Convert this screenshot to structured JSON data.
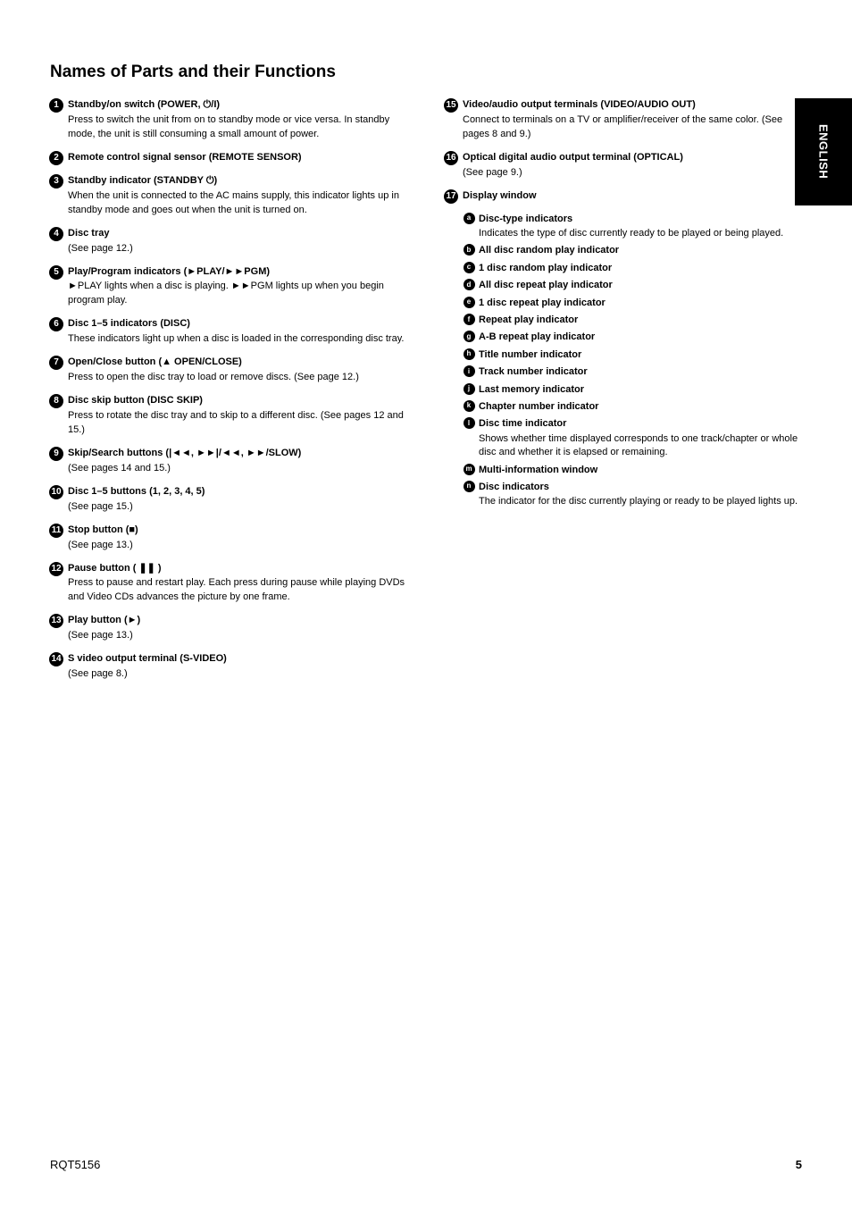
{
  "colors": {
    "text": "#000000",
    "bg": "#ffffff",
    "tab_bg": "#000000",
    "tab_text": "#ffffff"
  },
  "typography": {
    "heading_pt": 19,
    "body_pt": 11,
    "circled_num_pt": 10,
    "circled_letter_pt": 8
  },
  "page": {
    "heading": "Names of Parts and their Functions",
    "tab": "ENGLISH",
    "number_left": "RQT5156",
    "number_right": "5"
  },
  "left": [
    {
      "num": "1",
      "bold": "Standby/on switch (POWER, ⏻/I)",
      "text": "Press to switch the unit from on to standby mode or vice versa. In standby mode, the unit is still consuming a small amount of power."
    },
    {
      "num": "2",
      "bold": "Remote control signal sensor (REMOTE SENSOR)"
    },
    {
      "num": "3",
      "bold": "Standby indicator (STANDBY ⏻)",
      "text": "When the unit is connected to the AC mains supply, this indicator lights up in standby mode and goes out when the unit is turned on."
    },
    {
      "num": "4",
      "bold": "Disc tray",
      "text": "(See page 12.)"
    },
    {
      "num": "5",
      "bold": "Play/Program indicators (►PLAY/►►PGM)",
      "text": "►PLAY lights when a disc is playing.\n►►PGM lights up when you begin program play."
    },
    {
      "num": "6",
      "bold": "Disc 1–5 indicators (DISC)",
      "text": "These indicators light up when a disc is loaded in the corresponding disc tray."
    },
    {
      "num": "7",
      "bold": "Open/Close button (▲ OPEN/CLOSE)",
      "text": "Press to open the disc tray to load or remove discs.\n(See page 12.)"
    },
    {
      "num": "8",
      "bold": "Disc skip button (DISC SKIP)",
      "text": "Press to rotate the disc tray and to skip to a different disc. (See pages 12 and 15.)"
    },
    {
      "num": "9",
      "bold": "Skip/Search buttons (|◄◄, ►►|/◄◄, ►►/SLOW)",
      "text": "(See pages 14 and 15.)"
    },
    {
      "num": "10",
      "bold": "Disc 1–5 buttons (1, 2, 3, 4, 5)",
      "text": "(See page 15.)"
    },
    {
      "num": "11",
      "bold": "Stop button (■)",
      "text": "(See page 13.)"
    },
    {
      "num": "12",
      "bold": "Pause button ( ❚❚ )",
      "text": "Press to pause and restart play. Each press during pause while playing DVDs and Video CDs advances the picture by one frame."
    },
    {
      "num": "13",
      "bold": "Play button (►)",
      "text": "(See page 13.)"
    },
    {
      "num": "14",
      "bold": "S video output terminal (S-VIDEO)",
      "text": "(See page 8.)"
    }
  ],
  "right_top": [
    {
      "num": "15",
      "bold": "Video/audio output terminals (VIDEO/AUDIO OUT)",
      "text": "Connect to terminals on a TV or amplifier/receiver of the same color. (See pages 8 and 9.)"
    },
    {
      "num": "16",
      "bold": "Optical digital audio output terminal (OPTICAL)",
      "text": "(See page 9.)"
    },
    {
      "num": "17",
      "bold": "Display window"
    }
  ],
  "display_items": [
    {
      "letter": "a",
      "bold": "Disc-type indicators",
      "text": "Indicates the type of disc currently ready to be played or being played."
    },
    {
      "letter": "b",
      "bold": "All disc random play indicator"
    },
    {
      "letter": "c",
      "bold": "1 disc random play indicator"
    },
    {
      "letter": "d",
      "bold": "All disc repeat play indicator"
    },
    {
      "letter": "e",
      "bold": "1 disc repeat play indicator"
    },
    {
      "letter": "f",
      "bold": "Repeat play indicator"
    },
    {
      "letter": "g",
      "bold": "A-B repeat play indicator"
    },
    {
      "letter": "h",
      "bold": "Title number indicator"
    },
    {
      "letter": "i",
      "bold": "Track number indicator"
    },
    {
      "letter": "j",
      "bold": "Last memory indicator"
    },
    {
      "letter": "k",
      "bold": "Chapter number indicator"
    },
    {
      "letter": "l",
      "bold": "Disc time indicator",
      "text": "Shows whether time displayed corresponds to one track/chapter or whole disc and whether it is elapsed or remaining."
    },
    {
      "letter": "m",
      "bold": "Multi-information window"
    },
    {
      "letter": "n",
      "bold": "Disc indicators",
      "text": "The indicator for the disc currently playing or ready to be played lights up."
    }
  ]
}
